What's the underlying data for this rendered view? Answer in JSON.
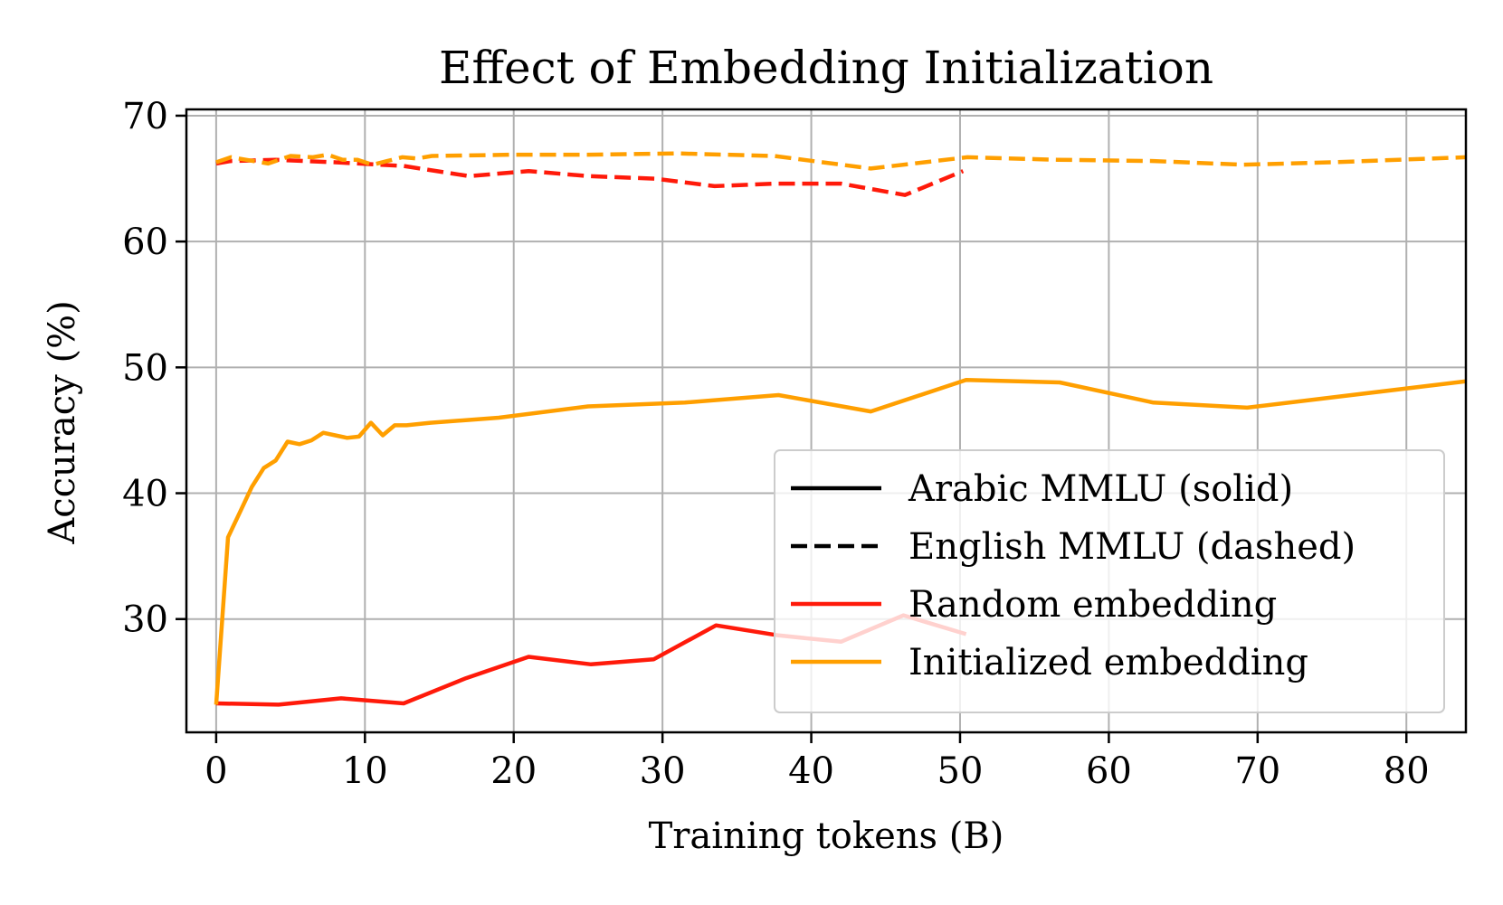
{
  "chart_data": {
    "type": "line",
    "title": "Effect of Embedding Initialization",
    "xlabel": "Training tokens (B)",
    "ylabel": "Accuracy (%)",
    "xlim": [
      -2,
      84
    ],
    "ylim": [
      21,
      70.5
    ],
    "xticks": [
      0,
      10,
      20,
      30,
      40,
      50,
      60,
      70,
      80
    ],
    "yticks": [
      30,
      40,
      50,
      60,
      70
    ],
    "grid": true,
    "legend_position": "lower right",
    "legend": [
      {
        "label": "Arabic MMLU (solid)",
        "color": "#000000",
        "style": "solid"
      },
      {
        "label": "English MMLU (dashed)",
        "color": "#000000",
        "style": "dashed"
      },
      {
        "label": "Random embedding",
        "color": "#ff1a0a",
        "style": "solid"
      },
      {
        "label": "Initialized embedding",
        "color": "#ff9f00",
        "style": "solid"
      }
    ],
    "series": [
      {
        "name": "Random embedding",
        "color": "#ff1a0a",
        "style": "dashed",
        "x": [
          0,
          1,
          4,
          8,
          12.6,
          17,
          21,
          25,
          29.5,
          33.5,
          37.5,
          42,
          46.3,
          50.2
        ],
        "y": [
          66.2,
          66.4,
          66.5,
          66.3,
          66.0,
          65.2,
          65.6,
          65.2,
          65.0,
          64.4,
          64.6,
          64.6,
          63.7,
          65.6
        ]
      },
      {
        "name": "Initialized embedding",
        "color": "#ff9f00",
        "style": "dashed",
        "x": [
          0,
          1,
          2,
          3.5,
          5,
          6.5,
          7.5,
          8.5,
          9.5,
          10.5,
          11.5,
          12.5,
          13.5,
          14.5,
          20,
          25,
          31,
          37.5,
          44,
          50.5,
          56.5,
          63,
          69,
          75,
          84
        ],
        "y": [
          66.3,
          66.7,
          66.5,
          66.2,
          66.8,
          66.7,
          66.9,
          66.5,
          66.5,
          66.1,
          66.4,
          66.7,
          66.6,
          66.8,
          66.9,
          66.9,
          67.0,
          66.8,
          65.8,
          66.7,
          66.5,
          66.4,
          66.1,
          66.3,
          66.7
        ]
      },
      {
        "name": "Random embedding",
        "color": "#ff1a0a",
        "style": "solid",
        "x": [
          0,
          4.2,
          8.4,
          12.6,
          16.8,
          21,
          25.2,
          29.4,
          33.6,
          37.8,
          42,
          46.2,
          50.4
        ],
        "y": [
          23.3,
          23.2,
          23.7,
          23.3,
          25.3,
          27.0,
          26.4,
          26.8,
          29.5,
          28.7,
          28.2,
          30.3,
          28.8
        ]
      },
      {
        "name": "Initialized embedding",
        "color": "#ff9f00",
        "style": "solid",
        "x": [
          0,
          0.8,
          1.6,
          2.4,
          3.2,
          4.0,
          4.8,
          5.6,
          6.4,
          7.2,
          8.0,
          8.8,
          9.6,
          10.4,
          11.2,
          12.0,
          12.8,
          13.6,
          14.4,
          19.0,
          25.0,
          31.5,
          37.8,
          44.0,
          50.4,
          56.7,
          63.0,
          69.3,
          84.0
        ],
        "y": [
          23.2,
          36.5,
          38.5,
          40.5,
          42.0,
          42.6,
          44.1,
          43.9,
          44.2,
          44.8,
          44.6,
          44.4,
          44.5,
          45.6,
          44.6,
          45.4,
          45.4,
          45.5,
          45.6,
          46.0,
          46.9,
          47.2,
          47.8,
          46.5,
          49.0,
          48.8,
          47.2,
          46.8,
          48.9
        ]
      }
    ]
  }
}
